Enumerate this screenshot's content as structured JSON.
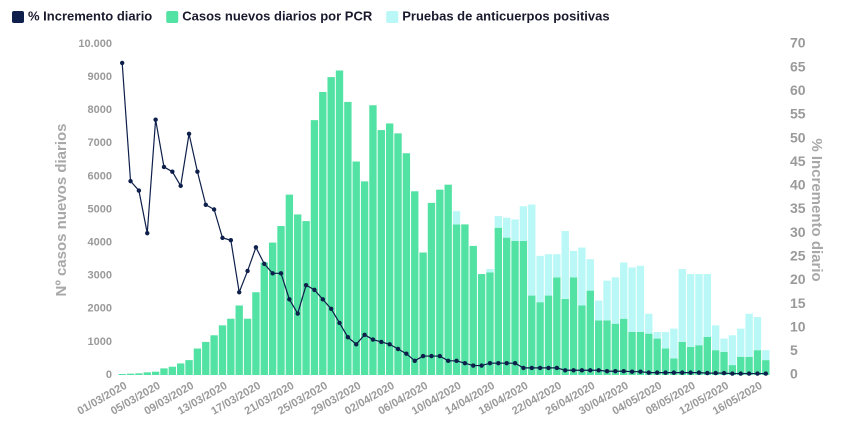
{
  "chart_data": {
    "type": "bar",
    "stacked": true,
    "grid": false,
    "y_label": "Nº casos nuevos diarios",
    "y2_label": "% Incremento diario",
    "categories": [
      "01/03/2020",
      null,
      null,
      null,
      "05/03/2020",
      null,
      null,
      null,
      "09/03/2020",
      null,
      null,
      null,
      "13/03/2020",
      null,
      null,
      null,
      "17/03/2020",
      null,
      null,
      null,
      "21/03/2020",
      null,
      null,
      null,
      "25/03/2020",
      null,
      null,
      null,
      "29/03/2020",
      null,
      null,
      null,
      "02/04/2020",
      null,
      null,
      null,
      "06/04/2020",
      null,
      null,
      null,
      "10/04/2020",
      null,
      null,
      null,
      "14/04/2020",
      null,
      null,
      null,
      "18/04/2020",
      null,
      null,
      null,
      "22/04/2020",
      null,
      null,
      null,
      "26/04/2020",
      null,
      null,
      null,
      "30/04/2020",
      null,
      null,
      null,
      "04/05/2020",
      null,
      null,
      null,
      "08/05/2020",
      null,
      null,
      null,
      "12/05/2020",
      null,
      null,
      null,
      "16/05/2020",
      null
    ],
    "series": [
      {
        "name": "% Incremento diario",
        "type": "line",
        "axis": "y2",
        "color": "#0d1f4a",
        "values": [
          66,
          41,
          39,
          30,
          54,
          44,
          43,
          40,
          51,
          43,
          36,
          35,
          29,
          28.5,
          17.5,
          22,
          27,
          23.5,
          21.5,
          21.5,
          16,
          13,
          19,
          18,
          16,
          14,
          11,
          8,
          6.5,
          8.5,
          7.5,
          7,
          6.5,
          5.5,
          4.5,
          3,
          4,
          4,
          4,
          3,
          3,
          2.5,
          2,
          2,
          2.5,
          2.5,
          2.5,
          2.5,
          1.5,
          1.5,
          1.5,
          1.5,
          1.5,
          1,
          1,
          1,
          1,
          1,
          0.8,
          0.8,
          0.8,
          0.7,
          0.7,
          0.5,
          0.5,
          0.5,
          0.5,
          0.5,
          0.5,
          0.5,
          0.4,
          0.4,
          0.4,
          0.3,
          0.3,
          0.3,
          0.3,
          0.3
        ]
      },
      {
        "name": "Casos nuevos diarios por PCR",
        "type": "bar",
        "color": "#52e2a3",
        "values": [
          30,
          40,
          50,
          80,
          100,
          200,
          250,
          350,
          450,
          800,
          1000,
          1200,
          1500,
          1700,
          2100,
          1700,
          2500,
          3400,
          4000,
          4500,
          5450,
          4850,
          4650,
          7700,
          8550,
          9000,
          9200,
          8250,
          6450,
          5850,
          8150,
          7400,
          7600,
          7300,
          6700,
          5550,
          3700,
          5200,
          5600,
          5750,
          4550,
          4550,
          3900,
          3050,
          3100,
          4450,
          4150,
          4050,
          4050,
          2400,
          2200,
          2400,
          2950,
          2300,
          2950,
          2100,
          2550,
          1650,
          1650,
          1550,
          1700,
          1300,
          1300,
          1250,
          1100,
          800,
          500,
          1000,
          850,
          900,
          1150,
          750,
          700,
          300,
          550,
          550,
          750,
          450
        ]
      },
      {
        "name": "Pruebas de anticuerpos positivas",
        "type": "bar",
        "color": "#b9f8f6",
        "values": [
          null,
          null,
          null,
          null,
          null,
          null,
          null,
          null,
          null,
          null,
          null,
          null,
          null,
          null,
          null,
          null,
          null,
          null,
          null,
          null,
          null,
          null,
          null,
          null,
          null,
          null,
          null,
          null,
          null,
          null,
          null,
          null,
          null,
          null,
          null,
          null,
          null,
          null,
          null,
          null,
          400,
          0,
          0,
          0,
          100,
          350,
          600,
          650,
          1050,
          2750,
          1400,
          1250,
          700,
          2050,
          800,
          1750,
          950,
          600,
          1200,
          1400,
          1700,
          1950,
          2000,
          600,
          200,
          500,
          900,
          2200,
          2200,
          2150,
          1900,
          750,
          400,
          900,
          850,
          1300,
          1000,
          300
        ]
      }
    ],
    "ylim": [
      0,
      10000
    ],
    "yticks": [
      0,
      1000,
      2000,
      3000,
      4000,
      5000,
      6000,
      7000,
      8000,
      9000,
      {
        "value": 10000,
        "label": "10.000"
      }
    ],
    "y2lim": [
      0,
      70
    ],
    "y2ticks": [
      0,
      5,
      10,
      15,
      20,
      25,
      30,
      35,
      40,
      45,
      50,
      55,
      60,
      65,
      70
    ]
  }
}
